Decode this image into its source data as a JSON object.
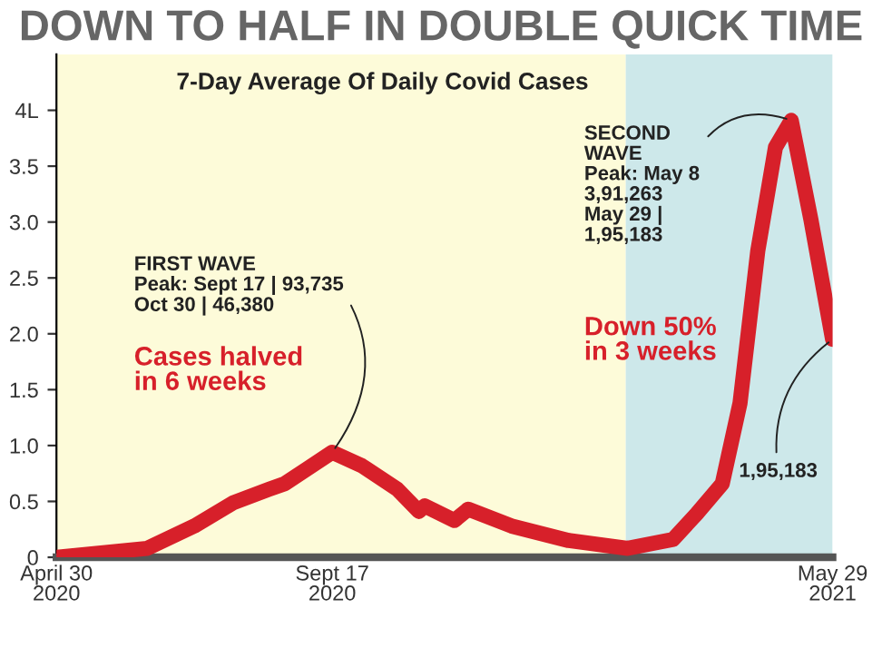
{
  "chart_data": {
    "type": "line",
    "title": "DOWN TO HALF IN DOUBLE QUICK TIME",
    "subtitle": "7-Day Average Of Daily Covid Cases",
    "x": [
      "2020-04-30",
      "2020-06-15",
      "2020-07-09",
      "2020-07-29",
      "2020-08-16",
      "2020-08-24",
      "2020-09-17",
      "2020-10-02",
      "2020-10-20",
      "2020-10-31",
      "2020-11-03",
      "2020-11-18",
      "2020-11-25",
      "2020-12-17",
      "2021-01-15",
      "2021-02-14",
      "2021-03-09",
      "2021-03-21",
      "2021-04-03",
      "2021-04-12",
      "2021-04-21",
      "2021-04-30",
      "2021-05-08",
      "2021-05-18",
      "2021-05-29"
    ],
    "series": [
      {
        "color": "#d7202a",
        "values": [
          0,
          0.08,
          0.28,
          0.49,
          0.61,
          0.66,
          0.94,
          0.82,
          0.61,
          0.41,
          0.46,
          0.33,
          0.43,
          0.28,
          0.15,
          0.08,
          0.16,
          0.39,
          0.66,
          1.38,
          2.74,
          3.67,
          3.91,
          3.02,
          1.95
        ]
      }
    ],
    "xlim": [
      "2020-04-30",
      "2021-05-29"
    ],
    "xticks": [
      {
        "value": "2020-04-30",
        "label": "April 30\n2020"
      },
      {
        "value": "2020-09-17",
        "label": "Sept 17\n2020"
      },
      {
        "value": "2021-05-29",
        "label": "May 29\n2021"
      }
    ],
    "ylim": [
      0,
      4.5
    ],
    "yticks": [
      0,
      0.5,
      {
        "value": 1,
        "label": "1.0"
      },
      1.5,
      {
        "value": 2,
        "label": "2.0"
      },
      2.5,
      {
        "value": 3,
        "label": "3.0"
      },
      3.5,
      {
        "value": 4,
        "label": "4L"
      }
    ],
    "bands": [
      {
        "axis": "x",
        "from": "2020-04-30",
        "to": "2021-02-13",
        "color": "#fdfbd9"
      },
      {
        "axis": "x",
        "from": "2021-02-13",
        "to": "2021-05-29",
        "color": "#cde8ea"
      }
    ],
    "annotations": [
      {
        "text": "FIRST WAVE\nPeak: Sept 17 | 93,735\nOct 30 | 46,380",
        "x": "2020-09-17",
        "y": 0.94
      },
      "Cases halved\nin 6 weeks",
      {
        "text": "SECOND\nWAVE\nPeak: May 8\n3,91,263\nMay 29 |\n1,95,183",
        "x": "2021-05-08",
        "y": 3.91
      },
      "Down 50%\nin 3 weeks",
      {
        "text": "1,95,183",
        "x": "2021-05-29",
        "y": 1.95
      }
    ],
    "grid": false,
    "legend": false,
    "marker": "none",
    "line_style": "solid"
  }
}
